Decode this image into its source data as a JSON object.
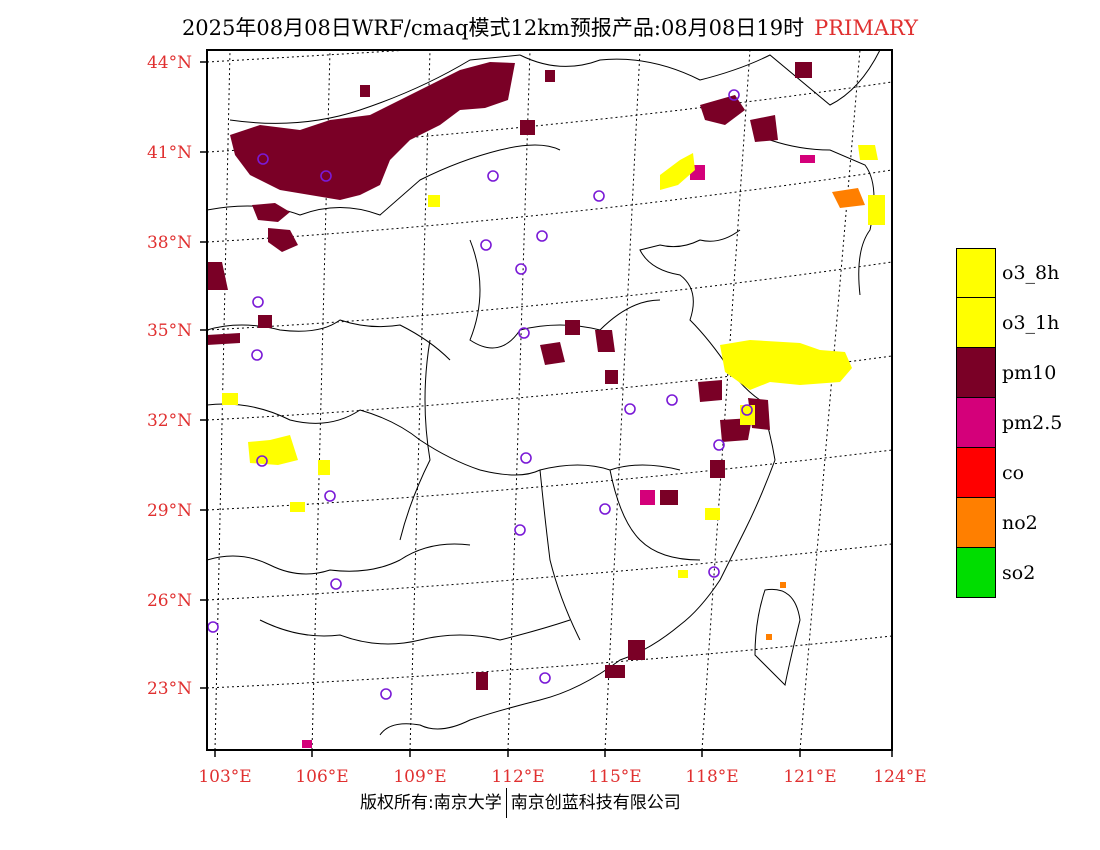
{
  "title": {
    "main": "2025年08月08日WRF/cmaq模式12km预报产品:08月08日19时",
    "tag": "PRIMARY",
    "tag_color": "#e03030"
  },
  "axes": {
    "lat_labels": [
      "44°N",
      "41°N",
      "38°N",
      "35°N",
      "32°N",
      "29°N",
      "26°N",
      "23°N"
    ],
    "lon_labels": [
      "103°E",
      "106°E",
      "109°E",
      "112°E",
      "115°E",
      "118°E",
      "121°E",
      "124°E"
    ]
  },
  "legend": [
    {
      "label": "o3_8h",
      "color": "#ffff00"
    },
    {
      "label": "o3_1h",
      "color": "#ffff00"
    },
    {
      "label": "pm10",
      "color": "#7a0026"
    },
    {
      "label": "pm2.5",
      "color": "#d4007a"
    },
    {
      "label": "co",
      "color": "#ff0000"
    },
    {
      "label": "no2",
      "color": "#ff7f00"
    },
    {
      "label": "so2",
      "color": "#00dd00"
    }
  ],
  "footer": {
    "left": "版权所有:南京大学",
    "right": "南京创蓝科技有限公司"
  }
}
